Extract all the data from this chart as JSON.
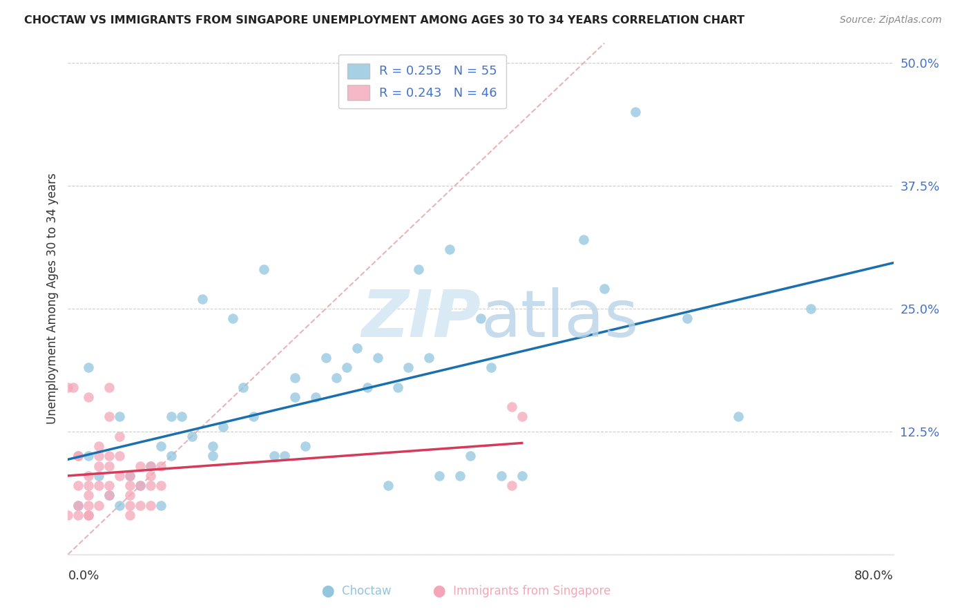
{
  "title": "CHOCTAW VS IMMIGRANTS FROM SINGAPORE UNEMPLOYMENT AMONG AGES 30 TO 34 YEARS CORRELATION CHART",
  "source": "Source: ZipAtlas.com",
  "ylabel": "Unemployment Among Ages 30 to 34 years",
  "yticks": [
    0.0,
    0.125,
    0.25,
    0.375,
    0.5
  ],
  "ytick_labels": [
    "",
    "12.5%",
    "25.0%",
    "37.5%",
    "50.0%"
  ],
  "xlim": [
    0.0,
    0.8
  ],
  "ylim": [
    0.0,
    0.52
  ],
  "choctaw_R": 0.255,
  "choctaw_N": 55,
  "singapore_R": 0.243,
  "singapore_N": 46,
  "choctaw_color": "#92c5de",
  "singapore_color": "#f4a6b8",
  "trendline_choctaw_color": "#1a6faf",
  "trendline_singapore_color": "#d63a5a",
  "diagonal_color": "#e8b4b8",
  "watermark_color": "#daeaf5",
  "choctaw_x": [
    0.01,
    0.02,
    0.02,
    0.03,
    0.04,
    0.05,
    0.05,
    0.06,
    0.07,
    0.08,
    0.09,
    0.09,
    0.1,
    0.1,
    0.11,
    0.12,
    0.13,
    0.14,
    0.14,
    0.15,
    0.16,
    0.17,
    0.18,
    0.19,
    0.2,
    0.21,
    0.22,
    0.22,
    0.23,
    0.24,
    0.25,
    0.26,
    0.27,
    0.28,
    0.29,
    0.3,
    0.31,
    0.32,
    0.33,
    0.34,
    0.35,
    0.36,
    0.37,
    0.38,
    0.39,
    0.4,
    0.41,
    0.42,
    0.44,
    0.5,
    0.52,
    0.55,
    0.6,
    0.65,
    0.72
  ],
  "choctaw_y": [
    0.05,
    0.19,
    0.1,
    0.08,
    0.06,
    0.05,
    0.14,
    0.08,
    0.07,
    0.09,
    0.11,
    0.05,
    0.14,
    0.1,
    0.14,
    0.12,
    0.26,
    0.1,
    0.11,
    0.13,
    0.24,
    0.17,
    0.14,
    0.29,
    0.1,
    0.1,
    0.16,
    0.18,
    0.11,
    0.16,
    0.2,
    0.18,
    0.19,
    0.21,
    0.17,
    0.2,
    0.07,
    0.17,
    0.19,
    0.29,
    0.2,
    0.08,
    0.31,
    0.08,
    0.1,
    0.24,
    0.19,
    0.08,
    0.08,
    0.32,
    0.27,
    0.45,
    0.24,
    0.14,
    0.25
  ],
  "singapore_x": [
    0.0,
    0.0,
    0.005,
    0.01,
    0.01,
    0.01,
    0.01,
    0.01,
    0.02,
    0.02,
    0.02,
    0.02,
    0.02,
    0.02,
    0.02,
    0.03,
    0.03,
    0.03,
    0.03,
    0.03,
    0.04,
    0.04,
    0.04,
    0.04,
    0.04,
    0.04,
    0.05,
    0.05,
    0.05,
    0.06,
    0.06,
    0.06,
    0.06,
    0.06,
    0.07,
    0.07,
    0.07,
    0.08,
    0.08,
    0.08,
    0.08,
    0.09,
    0.09,
    0.43,
    0.43,
    0.44
  ],
  "singapore_y": [
    0.04,
    0.17,
    0.17,
    0.1,
    0.1,
    0.07,
    0.05,
    0.04,
    0.16,
    0.08,
    0.07,
    0.06,
    0.05,
    0.04,
    0.04,
    0.11,
    0.1,
    0.09,
    0.07,
    0.05,
    0.17,
    0.14,
    0.1,
    0.09,
    0.07,
    0.06,
    0.12,
    0.1,
    0.08,
    0.08,
    0.07,
    0.06,
    0.05,
    0.04,
    0.09,
    0.07,
    0.05,
    0.09,
    0.08,
    0.07,
    0.05,
    0.09,
    0.07,
    0.15,
    0.07,
    0.14
  ]
}
